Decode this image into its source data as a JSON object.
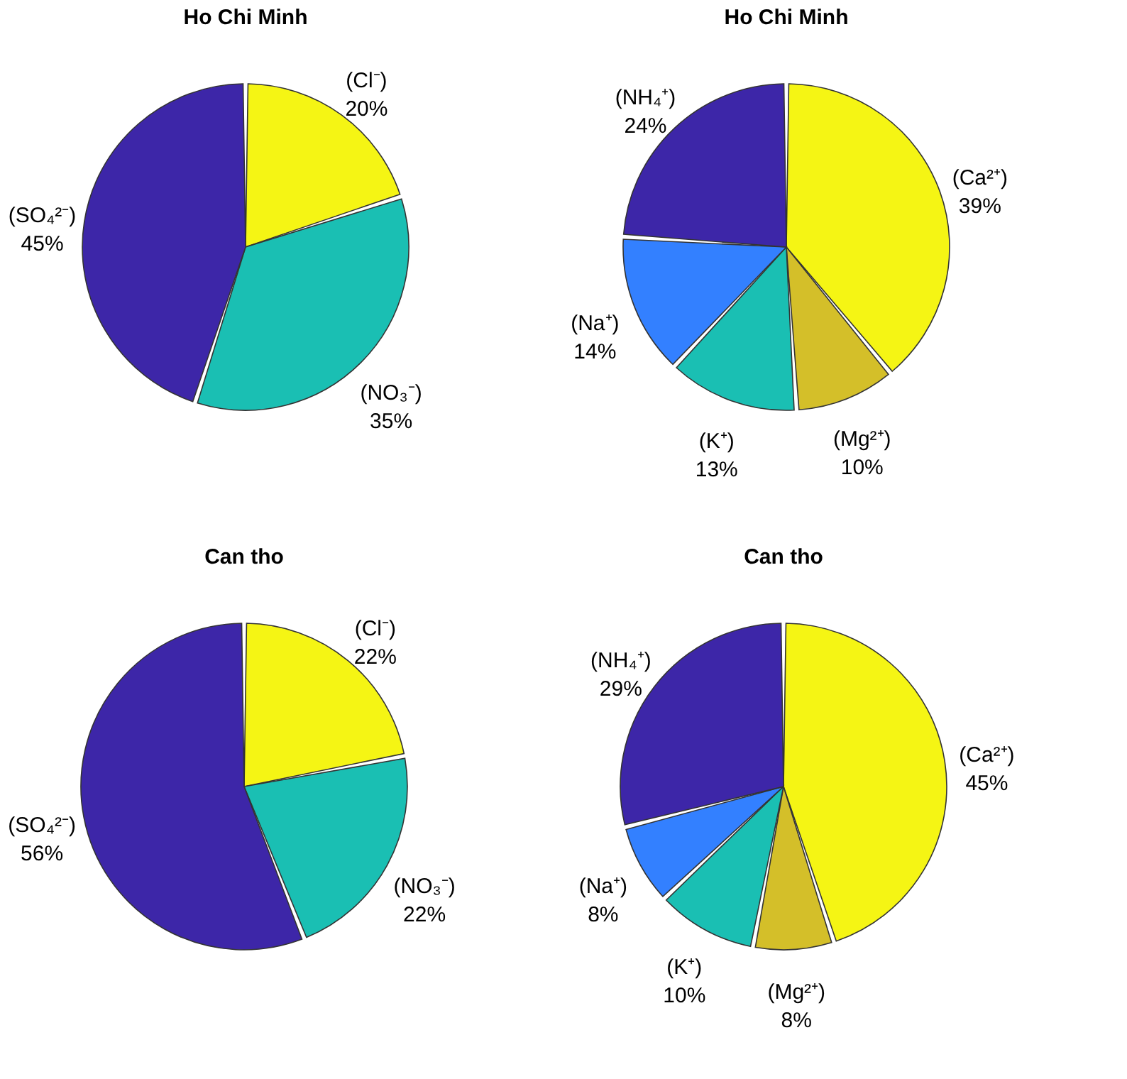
{
  "chart_data": [
    {
      "type": "pie",
      "title": "Ho Chi Minh",
      "categories": [
        "(Cl⁻)",
        "(NO₃⁻)",
        "(SO₄²⁻)"
      ],
      "values": [
        20,
        35,
        45
      ],
      "value_labels": [
        "20%",
        "35%",
        "45%"
      ],
      "colors": [
        "#f5f514",
        "#1abfb3",
        "#3d26a8"
      ],
      "legend": false
    },
    {
      "type": "pie",
      "title": "Ho Chi Minh",
      "categories": [
        "(Ca²⁺)",
        "(Mg²⁺)",
        "(K⁺)",
        "(Na⁺)",
        "(NH₄⁺)"
      ],
      "values": [
        39,
        10,
        13,
        14,
        24
      ],
      "value_labels": [
        "39%",
        "10%",
        "13%",
        "14%",
        "24%"
      ],
      "colors": [
        "#f5f514",
        "#d4bf29",
        "#1abfb3",
        "#3380ff",
        "#3d26a8"
      ],
      "legend": false
    },
    {
      "type": "pie",
      "title": "Can tho",
      "categories": [
        "(Cl⁻)",
        "(NO₃⁻)",
        "(SO₄²⁻)"
      ],
      "values": [
        22,
        22,
        56
      ],
      "value_labels": [
        "22%",
        "22%",
        "56%"
      ],
      "colors": [
        "#f5f514",
        "#1abfb3",
        "#3d26a8"
      ],
      "legend": false
    },
    {
      "type": "pie",
      "title": "Can tho",
      "categories": [
        "(Ca²⁺)",
        "(Mg²⁺)",
        "(K⁺)",
        "(Na⁺)",
        "(NH₄⁺)"
      ],
      "values": [
        45,
        8,
        10,
        8,
        29
      ],
      "value_labels": [
        "45%",
        "8%",
        "10%",
        "8%",
        "29%"
      ],
      "colors": [
        "#f5f514",
        "#d4bf29",
        "#1abfb3",
        "#3380ff",
        "#3d26a8"
      ],
      "legend": false
    }
  ]
}
